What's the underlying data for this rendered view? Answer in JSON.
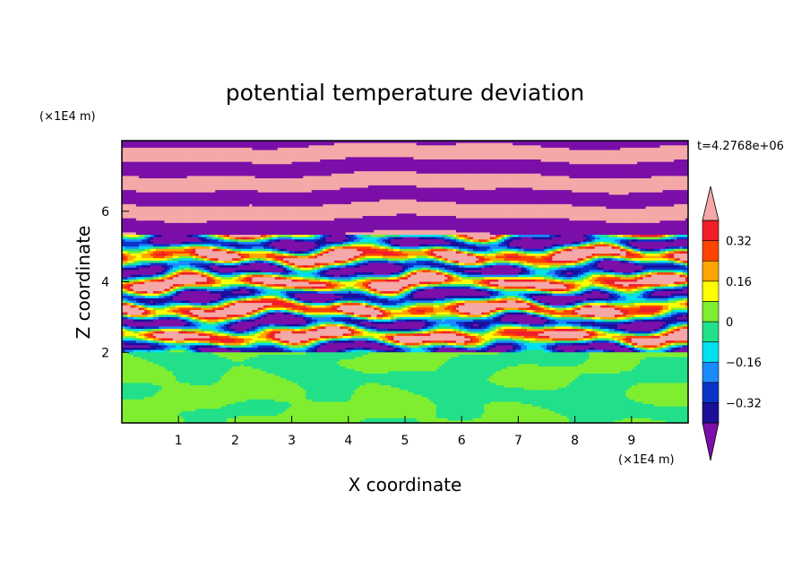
{
  "chart_data": {
    "type": "heatmap",
    "title": "potential temperature deviation",
    "xlabel": "X coordinate",
    "ylabel": "Z coordinate",
    "x_unit": "(×1E4 m)",
    "y_unit": "(×1E4 m)",
    "time_label": "t=4.2768e+06",
    "xlim": [
      0,
      10
    ],
    "ylim": [
      0,
      8
    ],
    "x_ticks": [
      1,
      2,
      3,
      4,
      5,
      6,
      7,
      8,
      9
    ],
    "y_ticks": [
      2,
      4,
      6
    ],
    "colorbar": {
      "levels": [
        -0.4,
        -0.32,
        -0.24,
        -0.16,
        -0.08,
        0,
        0.08,
        0.16,
        0.24,
        0.32,
        0.4
      ],
      "tick_labels": [
        "0.32",
        "0.16",
        "0",
        "−0.16",
        "−0.32"
      ],
      "tick_values": [
        0.32,
        0.16,
        0,
        -0.16,
        -0.32
      ],
      "extend": "both",
      "colors": [
        "#7b0fa8",
        "#1b0f9a",
        "#0a33c8",
        "#1a8aff",
        "#00e0f0",
        "#22e08a",
        "#80ee30",
        "#ffff00",
        "#ffa500",
        "#ff4500",
        "#ef1f2a",
        "#f5a8a8"
      ]
    },
    "description_regions": {
      "upper_band_z": [
        6,
        8
      ],
      "turbulent_band_z": [
        2,
        5.5
      ],
      "lower_layer_z": [
        0,
        2
      ]
    }
  }
}
